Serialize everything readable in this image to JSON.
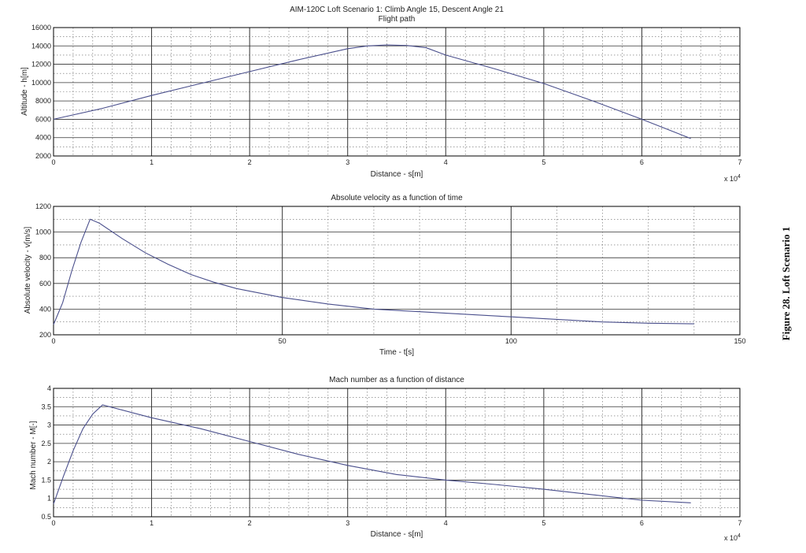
{
  "caption": "Figure 28. Loft Scenario 1",
  "colors": {
    "line": "#4a4f8c",
    "grid": "#666666",
    "frame": "#000000"
  },
  "chart_data": [
    {
      "type": "line",
      "title": "AIM-120C Loft Scenario 1: Climb Angle 15, Descent Angle 21",
      "subtitle": "Flight path",
      "xlabel": "Distance - s[m]",
      "ylabel": "Altitude - h[m]",
      "x_exponent": "x 10",
      "x_exponent_power": "4",
      "xlim": [
        0,
        7
      ],
      "ylim": [
        2000,
        16000
      ],
      "xticks": [
        0,
        1,
        2,
        3,
        4,
        5,
        6,
        7
      ],
      "yticks": [
        2000,
        4000,
        6000,
        8000,
        10000,
        12000,
        14000,
        16000
      ],
      "grid": true,
      "series": [
        {
          "x": [
            0,
            0.5,
            1,
            1.5,
            2,
            2.5,
            3,
            3.2,
            3.4,
            3.6,
            3.8,
            4,
            4.5,
            5,
            5.5,
            6,
            6.5
          ],
          "y": [
            6000,
            7200,
            8600,
            9900,
            11200,
            12500,
            13700,
            14000,
            14100,
            14050,
            13800,
            13000,
            11500,
            9900,
            8000,
            6000,
            3900
          ]
        }
      ]
    },
    {
      "type": "line",
      "title": "Absolute velocity as a function of time",
      "xlabel": "Time - t[s]",
      "ylabel": "Absolute velocity - v[m/s]",
      "xlim": [
        0,
        150
      ],
      "ylim": [
        200,
        1200
      ],
      "xticks": [
        0,
        50,
        100,
        150
      ],
      "yticks": [
        200,
        400,
        600,
        800,
        1000,
        1200
      ],
      "grid": true,
      "series": [
        {
          "x": [
            0,
            2,
            4,
            6,
            8,
            10,
            15,
            20,
            25,
            30,
            35,
            40,
            50,
            60,
            70,
            80,
            90,
            100,
            110,
            120,
            130,
            140
          ],
          "y": [
            280,
            450,
            700,
            920,
            1100,
            1070,
            950,
            840,
            750,
            670,
            610,
            560,
            490,
            440,
            400,
            380,
            360,
            340,
            320,
            300,
            290,
            285
          ]
        }
      ]
    },
    {
      "type": "line",
      "title": "Mach number as a function of distance",
      "xlabel": "Distance - s[m]",
      "ylabel": "Mach number - M[-]",
      "x_exponent": "x 10",
      "x_exponent_power": "4",
      "xlim": [
        0,
        7
      ],
      "ylim": [
        0.5,
        4
      ],
      "xticks": [
        0,
        1,
        2,
        3,
        4,
        5,
        6,
        7
      ],
      "yticks": [
        0.5,
        1,
        1.5,
        2,
        2.5,
        3,
        3.5,
        4
      ],
      "grid": true,
      "series": [
        {
          "x": [
            0,
            0.1,
            0.2,
            0.3,
            0.4,
            0.5,
            1,
            1.5,
            2,
            2.5,
            3,
            3.5,
            4,
            4.5,
            5,
            5.5,
            6,
            6.5
          ],
          "y": [
            0.85,
            1.6,
            2.3,
            2.9,
            3.3,
            3.55,
            3.2,
            2.9,
            2.55,
            2.2,
            1.9,
            1.65,
            1.5,
            1.38,
            1.25,
            1.1,
            0.95,
            0.88
          ]
        }
      ]
    }
  ]
}
